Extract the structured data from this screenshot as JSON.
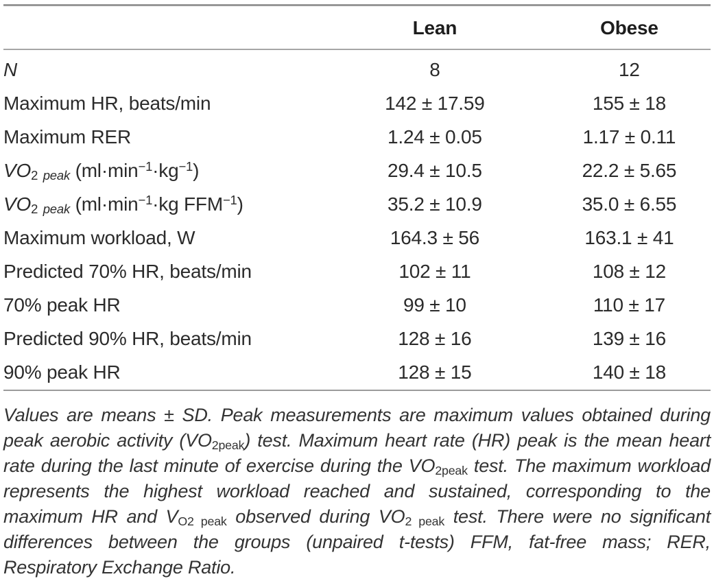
{
  "page": {
    "background_color": "#ffffff",
    "text_color": "#2b2b2b",
    "rule_color": "#979797"
  },
  "table": {
    "header": {
      "col1": "",
      "lean": "Lean",
      "obese": "Obese"
    },
    "rows": [
      {
        "label": [
          {
            "t": "N",
            "s": "i"
          }
        ],
        "lean": "8",
        "obese": "12"
      },
      {
        "label": [
          {
            "t": "Maximum HR, beats/min"
          }
        ],
        "lean": "142 ± 17.59",
        "obese": "155 ± 18"
      },
      {
        "label": [
          {
            "t": "Maximum RER"
          }
        ],
        "lean": "1.24 ± 0.05",
        "obese": "1.17 ± 0.11"
      },
      {
        "label": [
          {
            "t": "VO",
            "s": "i"
          },
          {
            "t": "2",
            "s": "sub"
          },
          {
            "t": " "
          },
          {
            "t": "peak",
            "s": "subi"
          },
          {
            "t": " (ml·min"
          },
          {
            "t": "−1",
            "s": "sup"
          },
          {
            "t": "·kg"
          },
          {
            "t": "−1",
            "s": "sup"
          },
          {
            "t": ")"
          }
        ],
        "lean": "29.4 ± 10.5",
        "obese": "22.2 ± 5.65"
      },
      {
        "label": [
          {
            "t": "VO",
            "s": "i"
          },
          {
            "t": "2",
            "s": "sub"
          },
          {
            "t": " "
          },
          {
            "t": "peak",
            "s": "subi"
          },
          {
            "t": " (ml·min"
          },
          {
            "t": "−1",
            "s": "sup"
          },
          {
            "t": "·kg FFM"
          },
          {
            "t": "−1",
            "s": "sup"
          },
          {
            "t": ")"
          }
        ],
        "lean": "35.2 ± 10.9",
        "obese": "35.0 ± 6.55"
      },
      {
        "label": [
          {
            "t": "Maximum workload, W"
          }
        ],
        "lean": "164.3 ± 56",
        "obese": "163.1 ± 41"
      },
      {
        "label": [
          {
            "t": "Predicted 70% HR, beats/min"
          }
        ],
        "lean": "102 ± 11",
        "obese": "108 ± 12"
      },
      {
        "label": [
          {
            "t": "70% peak HR"
          }
        ],
        "lean": "99 ± 10",
        "obese": "110 ± 17"
      },
      {
        "label": [
          {
            "t": "Predicted 90% HR, beats/min"
          }
        ],
        "lean": "128 ± 16",
        "obese": "139 ± 16"
      },
      {
        "label": [
          {
            "t": "90% peak HR"
          }
        ],
        "lean": "128 ± 15",
        "obese": "140 ± 18"
      }
    ]
  },
  "footnote": {
    "parts": [
      {
        "t": "Values are means ± SD. Peak measurements are maximum values obtained during peak aerobic activity (VO"
      },
      {
        "t": "2peak",
        "s": "sub"
      },
      {
        "t": ") test. Maximum heart rate (HR) peak is the mean heart rate during the last minute of exercise during the VO"
      },
      {
        "t": "2peak",
        "s": "sub"
      },
      {
        "t": " test. The maximum workload represents the highest workload reached and sustained, corresponding to the maximum HR and V"
      },
      {
        "t": "O2 peak",
        "s": "sub"
      },
      {
        "t": " observed during VO"
      },
      {
        "t": "2 peak",
        "s": "sub"
      },
      {
        "t": " test. There were no significant differences between the groups (unpaired t-tests) FFM, fat-free mass; RER, Respiratory Exchange Ratio."
      }
    ]
  }
}
